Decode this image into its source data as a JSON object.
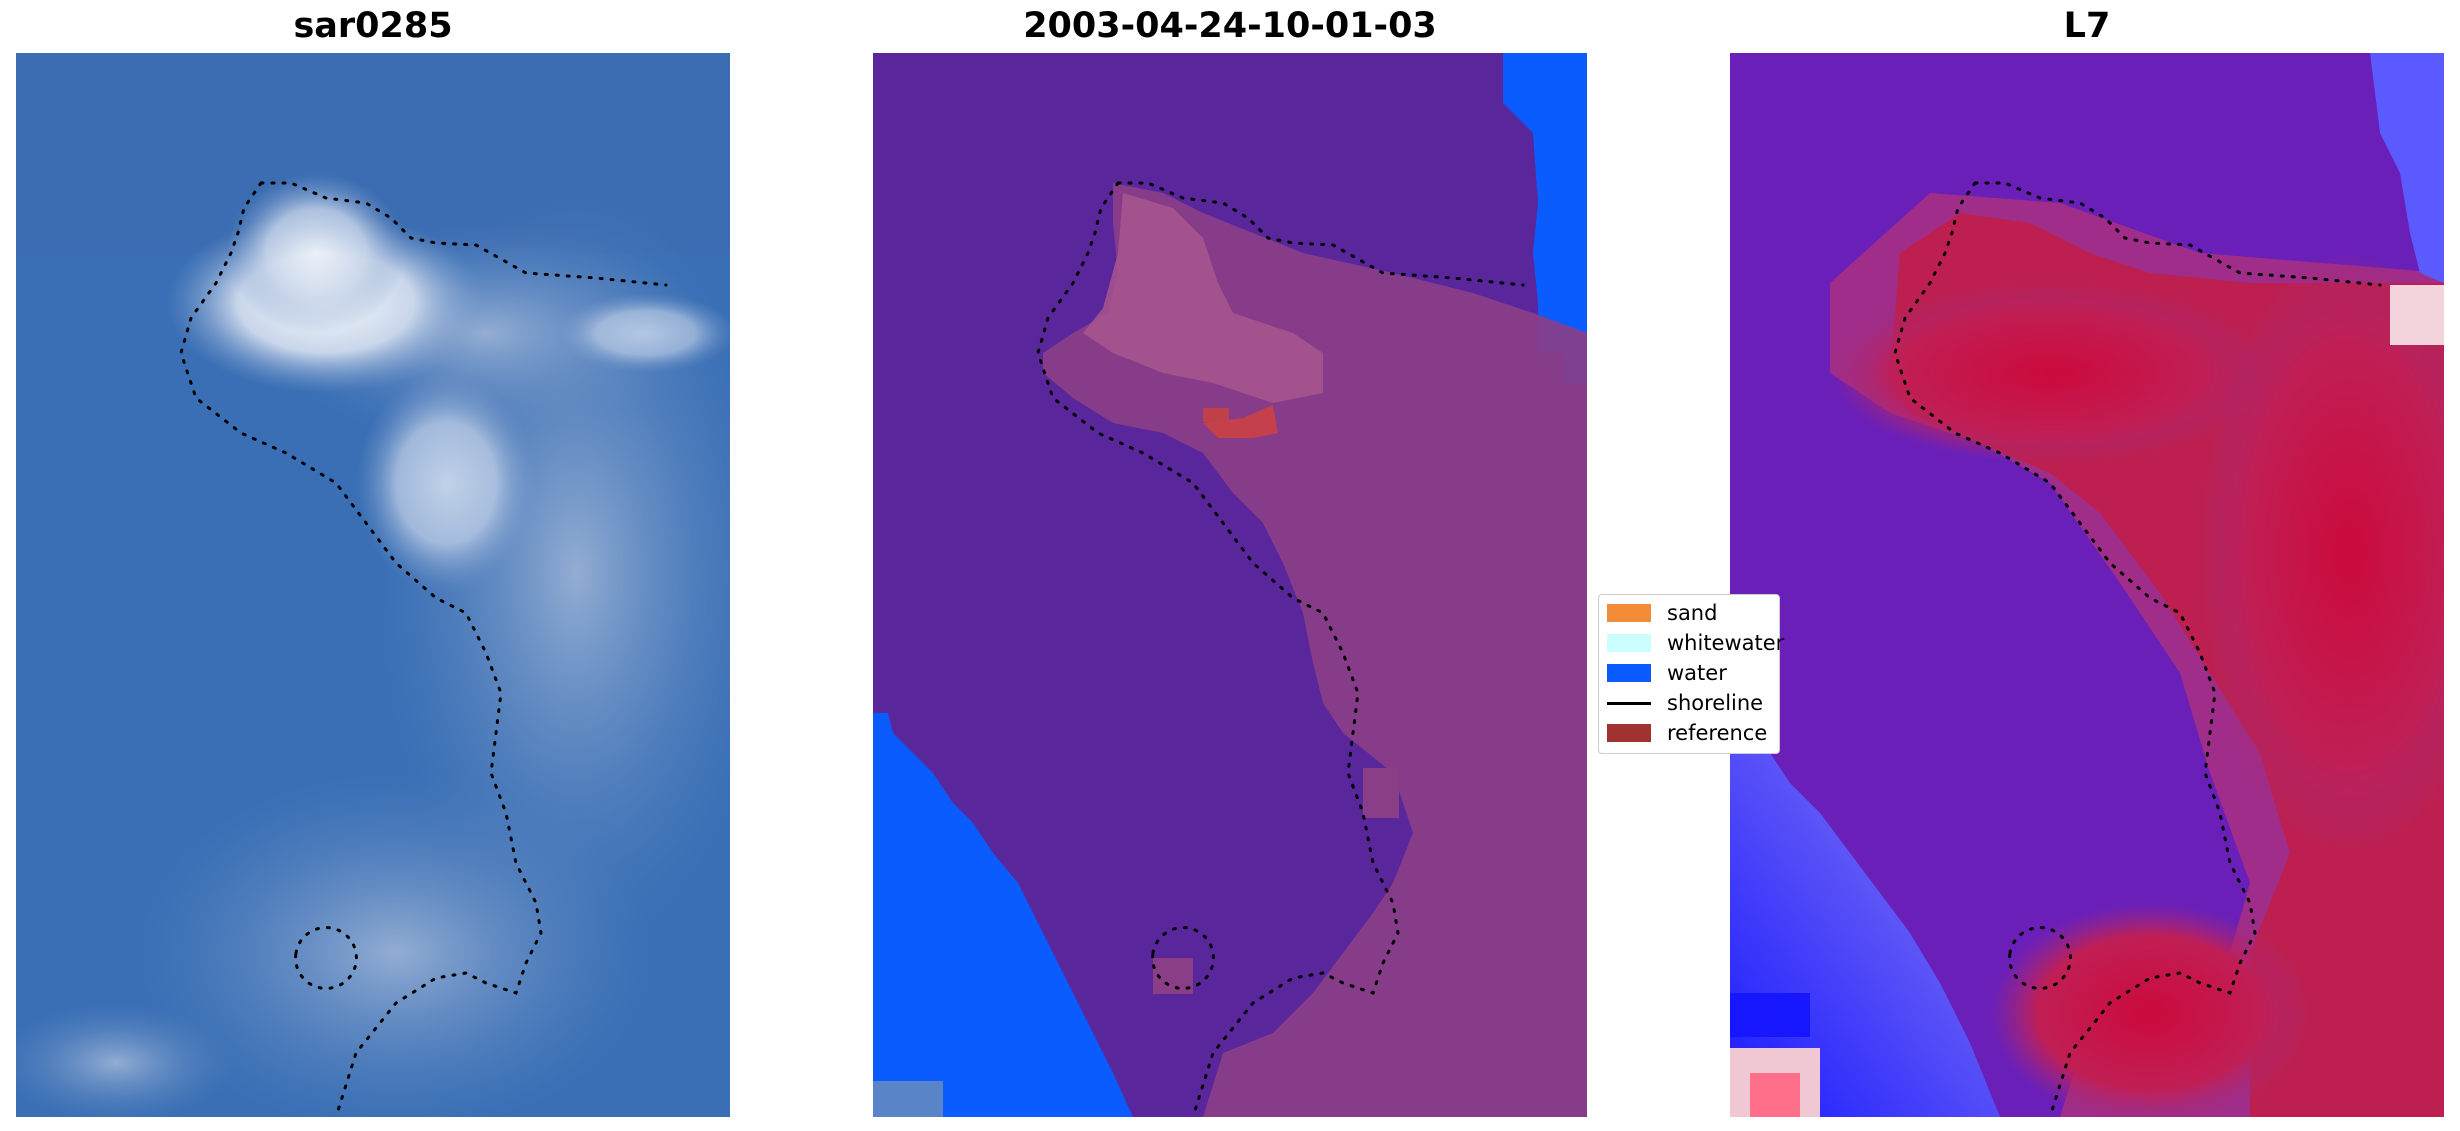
{
  "panels": [
    {
      "title": "sar0285"
    },
    {
      "title": "2003-04-24-10-01-03"
    },
    {
      "title": "L7"
    }
  ],
  "legend": {
    "items": [
      {
        "label": "sand",
        "color": "#f28c38",
        "kind": "patch"
      },
      {
        "label": "whitewater",
        "color": "#ccffff",
        "kind": "patch"
      },
      {
        "label": "water",
        "color": "#0a5cff",
        "kind": "patch"
      },
      {
        "label": "shoreline",
        "color": "#000000",
        "kind": "line"
      },
      {
        "label": "reference",
        "color": "#a0322f",
        "kind": "patch"
      }
    ]
  },
  "colors": {
    "sar_water": "#3a6fb5",
    "class_other": "#5a269b",
    "class_water": "#0a5cff",
    "class_sand_overlay": "#8a3e88",
    "index_negative": "#6a1fb8",
    "index_positive": "#cc0a3c",
    "index_water": "#3344ff"
  }
}
